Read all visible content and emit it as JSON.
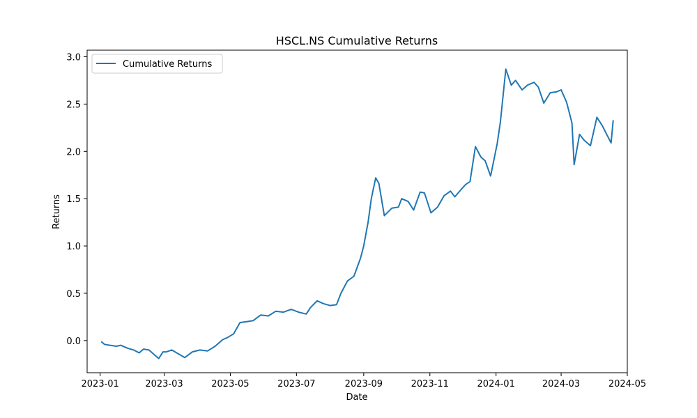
{
  "chart_data": {
    "type": "line",
    "title": "HSCL.NS Cumulative Returns",
    "xlabel": "Date",
    "ylabel": "Returns",
    "grid": false,
    "legend": {
      "placement": "top-left",
      "entries": [
        "Cumulative Returns"
      ]
    },
    "xlim": [
      "2022-12-20",
      "2024-05-01"
    ],
    "ylim": [
      -0.34,
      3.07
    ],
    "x_ticks": [
      "2023-01",
      "2023-03",
      "2023-05",
      "2023-07",
      "2023-09",
      "2023-11",
      "2024-01",
      "2024-03",
      "2024-05"
    ],
    "y_ticks": [
      "0.0",
      "0.5",
      "1.0",
      "1.5",
      "2.0",
      "2.5",
      "3.0"
    ],
    "colors": {
      "series": "#1f77b4"
    },
    "series": [
      {
        "name": "Cumulative Returns",
        "x": [
          "2023-01-02",
          "2023-01-05",
          "2023-01-10",
          "2023-01-16",
          "2023-01-20",
          "2023-01-26",
          "2023-02-01",
          "2023-02-06",
          "2023-02-10",
          "2023-02-15",
          "2023-02-20",
          "2023-02-24",
          "2023-02-28",
          "2023-03-03",
          "2023-03-08",
          "2023-03-14",
          "2023-03-20",
          "2023-03-27",
          "2023-04-03",
          "2023-04-10",
          "2023-04-17",
          "2023-04-24",
          "2023-04-28",
          "2023-05-04",
          "2023-05-10",
          "2023-05-16",
          "2023-05-22",
          "2023-05-29",
          "2023-06-05",
          "2023-06-12",
          "2023-06-19",
          "2023-06-26",
          "2023-07-03",
          "2023-07-10",
          "2023-07-14",
          "2023-07-20",
          "2023-07-26",
          "2023-08-01",
          "2023-08-07",
          "2023-08-11",
          "2023-08-17",
          "2023-08-23",
          "2023-08-29",
          "2023-09-01",
          "2023-09-05",
          "2023-09-08",
          "2023-09-12",
          "2023-09-15",
          "2023-09-20",
          "2023-09-27",
          "2023-10-03",
          "2023-10-06",
          "2023-10-12",
          "2023-10-17",
          "2023-10-23",
          "2023-10-27",
          "2023-11-02",
          "2023-11-08",
          "2023-11-14",
          "2023-11-20",
          "2023-11-24",
          "2023-11-30",
          "2023-12-04",
          "2023-12-08",
          "2023-12-13",
          "2023-12-18",
          "2023-12-22",
          "2023-12-27",
          "2024-01-02",
          "2024-01-05",
          "2024-01-10",
          "2024-01-15",
          "2024-01-19",
          "2024-01-25",
          "2024-01-30",
          "2024-02-05",
          "2024-02-09",
          "2024-02-14",
          "2024-02-20",
          "2024-02-26",
          "2024-03-01",
          "2024-03-06",
          "2024-03-11",
          "2024-03-13",
          "2024-03-18",
          "2024-03-22",
          "2024-03-28",
          "2024-04-03",
          "2024-04-08",
          "2024-04-12",
          "2024-04-16",
          "2024-04-18"
        ],
        "values": [
          -0.01,
          -0.04,
          -0.05,
          -0.06,
          -0.05,
          -0.08,
          -0.1,
          -0.13,
          -0.09,
          -0.1,
          -0.15,
          -0.19,
          -0.12,
          -0.12,
          -0.1,
          -0.14,
          -0.18,
          -0.12,
          -0.1,
          -0.11,
          -0.06,
          0.01,
          0.03,
          0.07,
          0.19,
          0.2,
          0.21,
          0.27,
          0.26,
          0.31,
          0.3,
          0.33,
          0.3,
          0.28,
          0.35,
          0.42,
          0.39,
          0.37,
          0.38,
          0.5,
          0.63,
          0.68,
          0.87,
          1.0,
          1.25,
          1.5,
          1.72,
          1.66,
          1.32,
          1.4,
          1.41,
          1.5,
          1.47,
          1.38,
          1.57,
          1.56,
          1.35,
          1.41,
          1.53,
          1.58,
          1.52,
          1.6,
          1.65,
          1.68,
          2.05,
          1.94,
          1.9,
          1.74,
          2.08,
          2.31,
          2.87,
          2.7,
          2.75,
          2.65,
          2.7,
          2.73,
          2.68,
          2.51,
          2.62,
          2.63,
          2.65,
          2.52,
          2.3,
          1.86,
          2.18,
          2.12,
          2.06,
          2.36,
          2.27,
          2.18,
          2.09,
          2.33
        ]
      }
    ]
  }
}
